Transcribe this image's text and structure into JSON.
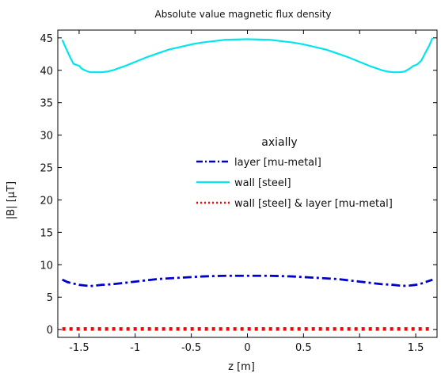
{
  "chart_data": {
    "type": "line",
    "title": "Absolute value magnetic flux density",
    "xlabel": "z [m]",
    "ylabel": "|B| [µT]",
    "xlim": [
      -1.69,
      1.69
    ],
    "ylim": [
      -1.2,
      46.2
    ],
    "xticks": [
      -1.5,
      -1,
      -0.5,
      0,
      0.5,
      1,
      1.5
    ],
    "xtick_labels": [
      "-1.5",
      "-1",
      "-0.5",
      "0",
      "0.5",
      "1",
      "1.5"
    ],
    "yticks": [
      0,
      5,
      10,
      15,
      20,
      25,
      30,
      35,
      40,
      45
    ],
    "ytick_labels": [
      "0",
      "5",
      "10",
      "15",
      "20",
      "25",
      "30",
      "35",
      "40",
      "45"
    ],
    "grid": false,
    "legend": {
      "title": "axially",
      "placement": "center-right"
    },
    "series": [
      {
        "name": "layer [mu-metal]",
        "color": "#0000cc",
        "style": "dashdot",
        "x": [
          -1.65,
          -1.6,
          -1.55,
          -1.5,
          -1.45,
          -1.4,
          -1.35,
          -1.3,
          -1.2,
          -1.1,
          -1.0,
          -0.9,
          -0.8,
          -0.7,
          -0.6,
          -0.5,
          -0.4,
          -0.3,
          -0.2,
          -0.1,
          0,
          0.1,
          0.2,
          0.3,
          0.4,
          0.5,
          0.6,
          0.7,
          0.8,
          0.9,
          1.0,
          1.1,
          1.2,
          1.3,
          1.35,
          1.4,
          1.45,
          1.5,
          1.55,
          1.6,
          1.65
        ],
        "y": [
          7.7,
          7.3,
          7.1,
          6.9,
          6.8,
          6.7,
          6.8,
          6.9,
          7.0,
          7.2,
          7.4,
          7.6,
          7.8,
          7.9,
          8.0,
          8.1,
          8.2,
          8.25,
          8.3,
          8.3,
          8.3,
          8.3,
          8.3,
          8.25,
          8.2,
          8.1,
          8.0,
          7.9,
          7.8,
          7.6,
          7.4,
          7.2,
          7.0,
          6.9,
          6.8,
          6.75,
          6.8,
          6.9,
          7.1,
          7.4,
          7.7
        ]
      },
      {
        "name": "wall [steel]",
        "color": "#00e5ee",
        "style": "solid",
        "x": [
          -1.65,
          -1.62,
          -1.58,
          -1.55,
          -1.52,
          -1.5,
          -1.48,
          -1.45,
          -1.42,
          -1.4,
          -1.35,
          -1.3,
          -1.25,
          -1.2,
          -1.1,
          -1.0,
          -0.9,
          -0.8,
          -0.7,
          -0.6,
          -0.5,
          -0.4,
          -0.3,
          -0.2,
          -0.1,
          0,
          0.1,
          0.2,
          0.3,
          0.4,
          0.5,
          0.6,
          0.7,
          0.8,
          0.9,
          1.0,
          1.1,
          1.2,
          1.25,
          1.3,
          1.35,
          1.4,
          1.42,
          1.45,
          1.48,
          1.5,
          1.52,
          1.55,
          1.58,
          1.62,
          1.65
        ],
        "y": [
          44.7,
          43.5,
          42.0,
          41.0,
          40.8,
          40.7,
          40.3,
          40.0,
          39.8,
          39.7,
          39.7,
          39.7,
          39.8,
          40.0,
          40.6,
          41.3,
          42.0,
          42.6,
          43.2,
          43.6,
          44.0,
          44.3,
          44.5,
          44.7,
          44.75,
          44.8,
          44.75,
          44.7,
          44.5,
          44.3,
          44.0,
          43.6,
          43.2,
          42.6,
          42.0,
          41.3,
          40.6,
          40.0,
          39.8,
          39.7,
          39.7,
          39.8,
          40.0,
          40.3,
          40.7,
          40.8,
          41.0,
          41.5,
          42.5,
          43.8,
          45.0
        ]
      },
      {
        "name": "wall [steel] & layer [mu-metal]",
        "color": "#ff0000",
        "style": "dotted",
        "x": [
          -1.65,
          -1.5,
          -1.0,
          -0.5,
          0,
          0.5,
          1.0,
          1.5,
          1.65
        ],
        "y": [
          0.1,
          0.1,
          0.1,
          0.1,
          0.1,
          0.1,
          0.1,
          0.1,
          0.1
        ]
      }
    ]
  }
}
